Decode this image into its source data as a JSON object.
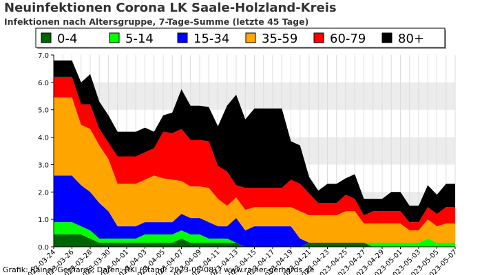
{
  "header": {
    "title": "Neuinfektionen Corona LK Saale-Holzland-Kreis",
    "subtitle": "Infektionen nach Altersgruppe, 7-Tage-Summe (letzte 45 Tage)"
  },
  "footer": {
    "credit": "Grafik: Rainer Gerhards, Daten: RKI (Stand: 2023-05-08) | www.rainer-gerhards.de"
  },
  "chart_data": {
    "type": "area",
    "stacked": true,
    "title": "Neuinfektionen Corona LK Saale-Holzland-Kreis",
    "subtitle": "Infektionen nach Altersgruppe, 7-Tage-Summe (letzte 45 Tage)",
    "xlabel": "",
    "ylabel": "",
    "ylim": [
      0,
      7
    ],
    "yticks": [
      "0.0",
      "1.0",
      "2.0",
      "3.0",
      "4.0",
      "5.0",
      "6.0",
      "7.0"
    ],
    "grid": "alternating horizontal bands, vertical grid lines",
    "legend_position": "top",
    "xtick_labels": [
      "2023-03-24",
      "2023-03-26",
      "2023-03-28",
      "2023-03-30",
      "2023-04-01",
      "2023-04-03",
      "2023-04-05",
      "2023-04-07",
      "2023-04-09",
      "2023-04-11",
      "2023-04-13",
      "2023-04-15",
      "2023-04-17",
      "2023-04-19",
      "2023-04-21",
      "2023-04-23",
      "2023-04-25",
      "2023-04-27",
      "2023-04-29",
      "2023-05-01",
      "2023-05-03",
      "2023-05-05",
      "2023-05-07"
    ],
    "x": [
      "2023-03-24",
      "2023-03-25",
      "2023-03-26",
      "2023-03-27",
      "2023-03-28",
      "2023-03-29",
      "2023-03-30",
      "2023-03-31",
      "2023-04-01",
      "2023-04-02",
      "2023-04-03",
      "2023-04-04",
      "2023-04-05",
      "2023-04-06",
      "2023-04-07",
      "2023-04-08",
      "2023-04-09",
      "2023-04-10",
      "2023-04-11",
      "2023-04-12",
      "2023-04-13",
      "2023-04-14",
      "2023-04-15",
      "2023-04-16",
      "2023-04-17",
      "2023-04-18",
      "2023-04-19",
      "2023-04-20",
      "2023-04-21",
      "2023-04-22",
      "2023-04-23",
      "2023-04-24",
      "2023-04-25",
      "2023-04-26",
      "2023-04-27",
      "2023-04-28",
      "2023-04-29",
      "2023-04-30",
      "2023-05-01",
      "2023-05-02",
      "2023-05-03",
      "2023-05-04",
      "2023-05-05",
      "2023-05-06",
      "2023-05-07"
    ],
    "series": [
      {
        "name": "0-4",
        "color": "#006400",
        "values": [
          0.45,
          0.45,
          0.45,
          0.45,
          0.3,
          0.15,
          0.15,
          0.15,
          0.15,
          0.15,
          0.15,
          0.15,
          0.15,
          0.15,
          0.3,
          0.15,
          0.15,
          0.15,
          0.15,
          0.15,
          0.15,
          0,
          0,
          0,
          0,
          0,
          0,
          0,
          0.15,
          0.15,
          0.15,
          0.15,
          0.15,
          0.15,
          0.15,
          0,
          0,
          0,
          0,
          0,
          0,
          0,
          0,
          0,
          0
        ]
      },
      {
        "name": "5-14",
        "color": "#00ff00",
        "values": [
          0.45,
          0.45,
          0.45,
          0.3,
          0.3,
          0.15,
          0.15,
          0.15,
          0.15,
          0.15,
          0.3,
          0.3,
          0.3,
          0.3,
          0.3,
          0.3,
          0.3,
          0.15,
          0.15,
          0.15,
          0,
          0,
          0,
          0,
          0,
          0,
          0,
          0,
          0,
          0,
          0,
          0,
          0,
          0,
          0,
          0.15,
          0.15,
          0.15,
          0.15,
          0.15,
          0.15,
          0.3,
          0.15,
          0.15,
          0.15
        ]
      },
      {
        "name": "15-34",
        "color": "#0000ff",
        "values": [
          1.7,
          1.7,
          1.7,
          1.5,
          1.4,
          1.3,
          1.0,
          0.45,
          0.45,
          0.45,
          0.45,
          0.45,
          0.45,
          0.45,
          0.6,
          0.6,
          0.6,
          0.6,
          0.45,
          0.45,
          0.9,
          0.6,
          0.75,
          0.75,
          0.75,
          0.75,
          0.75,
          0.3,
          0,
          0,
          0,
          0,
          0,
          0,
          0,
          0,
          0,
          0,
          0,
          0,
          0,
          0,
          0,
          0,
          0
        ]
      },
      {
        "name": "35-59",
        "color": "#ffa500",
        "values": [
          2.85,
          2.85,
          2.85,
          2.2,
          2.3,
          2.1,
          1.9,
          1.55,
          1.55,
          1.55,
          1.55,
          1.7,
          1.6,
          1.55,
          1.2,
          1.15,
          1.15,
          1.25,
          1.0,
          0.75,
          0.75,
          0.75,
          0.7,
          0.7,
          0.7,
          0.7,
          0.7,
          1.0,
          1.0,
          1.0,
          1.0,
          1.0,
          1.15,
          1.15,
          0.7,
          0.7,
          0.7,
          0.7,
          0.7,
          0.45,
          0.45,
          0.7,
          0.6,
          0.7,
          0.7
        ]
      },
      {
        "name": "60-79",
        "color": "#ff0000",
        "values": [
          0.75,
          0.75,
          0.75,
          0.75,
          0.9,
          0.6,
          0.6,
          1.0,
          1.0,
          1.0,
          1.0,
          1.0,
          1.7,
          1.7,
          1.9,
          1.7,
          1.7,
          1.7,
          1.2,
          1.25,
          0.45,
          0.8,
          0.7,
          0.7,
          0.7,
          0.7,
          1.0,
          1.0,
          0.8,
          0.45,
          0.45,
          0.45,
          0.6,
          0.45,
          0.3,
          0.45,
          0.45,
          0.45,
          0.45,
          0.3,
          0.3,
          0.45,
          0.45,
          0.6,
          0.6
        ]
      },
      {
        "name": "80+",
        "color": "#000000",
        "values": [
          0.6,
          0.6,
          0.6,
          0.8,
          1.1,
          1.0,
          1.0,
          0.9,
          0.9,
          0.9,
          0.9,
          0.6,
          0.6,
          0.75,
          1.45,
          1.25,
          1.25,
          1.25,
          1.45,
          2.4,
          3.3,
          2.5,
          2.9,
          2.9,
          2.9,
          2.9,
          1.4,
          1.4,
          0.6,
          0.45,
          0.7,
          0.7,
          0.6,
          0.9,
          0.6,
          0.45,
          0.45,
          0.7,
          0.7,
          0.6,
          0.6,
          0.8,
          0.7,
          0.85,
          0.85
        ]
      }
    ]
  }
}
